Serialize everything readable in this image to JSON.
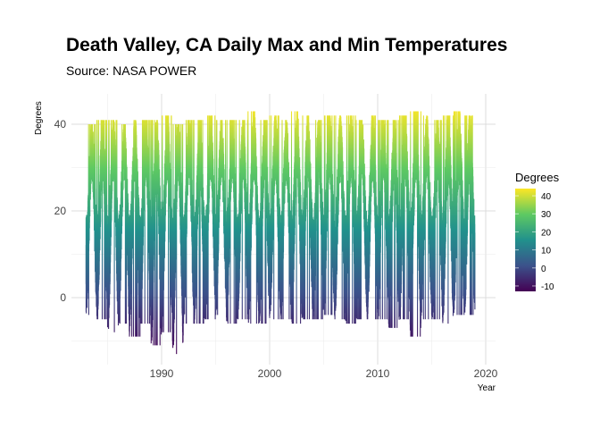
{
  "chart_data": {
    "type": "line",
    "title": "Death Valley, CA Daily Max and Min Temperatures",
    "subtitle": "Source: NASA POWER",
    "xlabel": "Year",
    "ylabel": "Degrees",
    "xlim": [
      1982,
      2021
    ],
    "ylim": [
      -15,
      47
    ],
    "x_ticks": [
      1990,
      2000,
      2010,
      2020
    ],
    "y_ticks": [
      0,
      20,
      40
    ],
    "grid": true,
    "legend": {
      "title": "Degrees",
      "placement": "right",
      "ticks": [
        40,
        30,
        20,
        10,
        0,
        -10
      ],
      "range": [
        -13,
        44
      ],
      "colormap": "viridis",
      "colors": [
        "#440154",
        "#3b528b",
        "#21918c",
        "#5ec962",
        "#fde725"
      ]
    },
    "years": [
      1983,
      1984,
      1985,
      1986,
      1987,
      1988,
      1989,
      1990,
      1991,
      1992,
      1993,
      1994,
      1995,
      1996,
      1997,
      1998,
      1999,
      2000,
      2001,
      2002,
      2003,
      2004,
      2005,
      2006,
      2007,
      2008,
      2009,
      2010,
      2011,
      2012,
      2013,
      2014,
      2015,
      2016,
      2017,
      2018
    ],
    "annual_max": [
      40,
      41,
      41,
      40,
      41,
      41,
      41,
      42,
      40,
      41,
      41,
      42,
      41,
      41,
      41,
      43,
      41,
      42,
      41,
      43,
      42,
      41,
      42,
      42,
      42,
      41,
      42,
      41,
      41,
      42,
      43,
      42,
      41,
      42,
      43,
      42
    ],
    "annual_min": [
      -4,
      -5,
      -8,
      -6,
      -9,
      -6,
      -11,
      -8,
      -13,
      -6,
      -6,
      -5,
      -4,
      -6,
      -5,
      -6,
      -6,
      -5,
      -5,
      -6,
      -5,
      -5,
      -4,
      -5,
      -6,
      -5,
      -5,
      -5,
      -7,
      -5,
      -9,
      -5,
      -5,
      -6,
      -4,
      -4
    ]
  }
}
